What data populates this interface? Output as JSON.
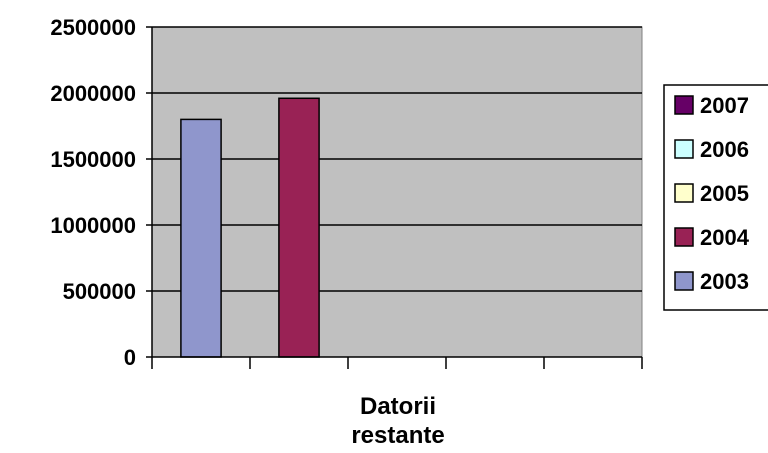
{
  "chart_data": {
    "type": "bar",
    "title": "",
    "xlabel_lines": [
      "Datorii",
      "restante"
    ],
    "ylabel": "",
    "ylim": [
      0,
      2500000
    ],
    "yticks": [
      "0",
      "500000",
      "1000000",
      "1500000",
      "2000000",
      "2500000"
    ],
    "grid": true,
    "plot_background": "#c0c0c0",
    "legend_position": "right",
    "series": [
      {
        "name": "2003",
        "color": "#8f96cc",
        "values": [
          1800000
        ]
      },
      {
        "name": "2004",
        "color": "#992255",
        "values": [
          1960000
        ]
      },
      {
        "name": "2005",
        "color": "#ffffcc",
        "values": [
          0
        ]
      },
      {
        "name": "2006",
        "color": "#ccffff",
        "values": [
          0
        ]
      },
      {
        "name": "2007",
        "color": "#660066",
        "values": [
          0
        ]
      }
    ],
    "legend_order": [
      "2007",
      "2006",
      "2005",
      "2004",
      "2003"
    ]
  }
}
